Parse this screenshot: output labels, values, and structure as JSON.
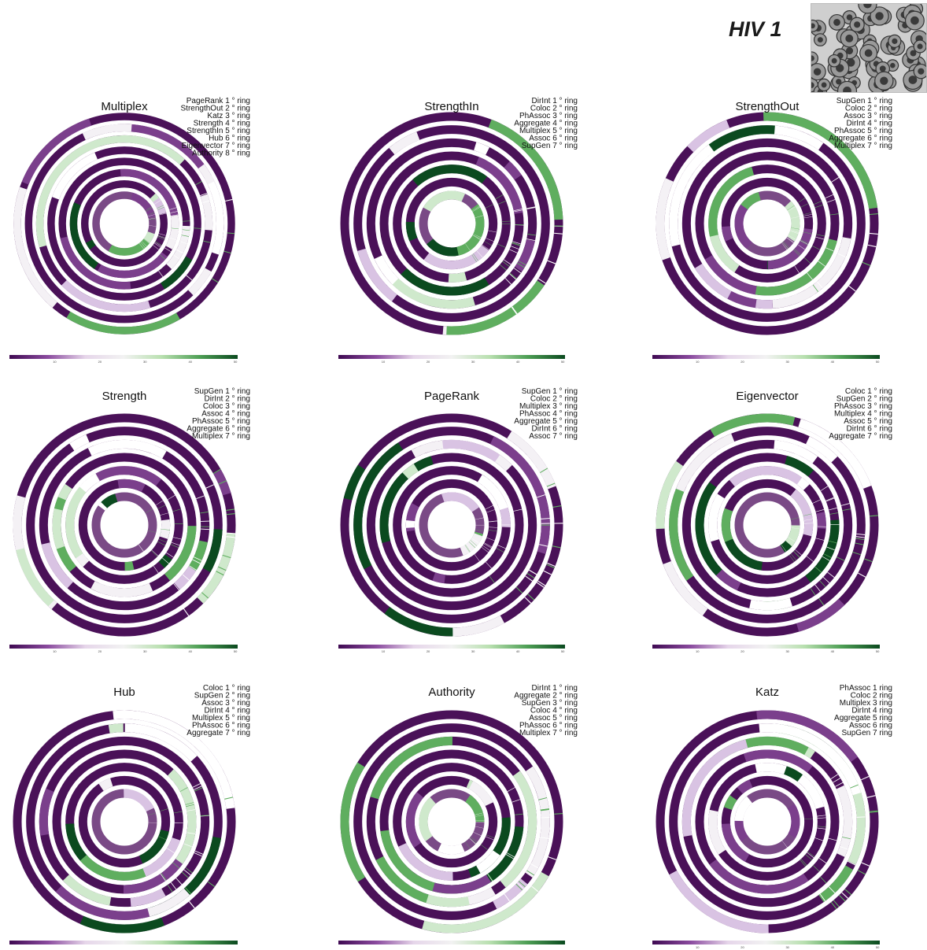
{
  "figure": {
    "title": "HIV 1"
  },
  "colors": {
    "ring_base": "#4a1158",
    "ring_mid": "#7b3f8c",
    "light_purple": "#d9c3e3",
    "light_green": "#cfe9cc",
    "mid_green": "#5fae5f",
    "dark_green": "#0b4a1f",
    "very_light": "#f4f1f5"
  },
  "colorbar": {
    "ticks": [
      "10",
      "20",
      "30",
      "40",
      "50"
    ],
    "stops": [
      "#3f0a52",
      "#8a4a9e",
      "#e6d6ea",
      "#f2f2f2",
      "#b9e0b0",
      "#4e9f55",
      "#0b4a1f"
    ]
  },
  "chart_data": [
    {
      "type": "circular heatmap",
      "title": "Multiplex",
      "rings": [
        "PageRank 1 ° ring",
        "StrengthOut 2 ° ring",
        "Katz 3 ° ring",
        "Strength 4 ° ring",
        "StrengthIn 5 ° ring",
        "Hub 6 ° ring",
        "Eigenvector 7 ° ring",
        "Authority 8 ° ring"
      ],
      "colorbar_ticks": [
        "10",
        "20",
        "30",
        "40",
        "50"
      ]
    },
    {
      "type": "circular heatmap",
      "title": "StrengthIn",
      "rings": [
        "DirInt 1 ° ring",
        "Coloc 2 ° ring",
        "PhAssoc 3 ° ring",
        "Aggregate 4 ° ring",
        "Multiplex 5 ° ring",
        "Assoc 6 ° ring",
        "SupGen 7 ° ring"
      ],
      "colorbar_ticks": [
        "10",
        "20",
        "30",
        "40",
        "50"
      ]
    },
    {
      "type": "circular heatmap",
      "title": "StrengthOut",
      "rings": [
        "SupGen 1 ° ring",
        "Coloc 2 ° ring",
        "Assoc 3 ° ring",
        "DirInt 4 ° ring",
        "PhAssoc 5 ° ring",
        "Aggregate 6 ° ring",
        "Multiplex 7 ° ring"
      ],
      "colorbar_ticks": [
        "10",
        "20",
        "30",
        "40",
        "50"
      ]
    },
    {
      "type": "circular heatmap",
      "title": "Strength",
      "rings": [
        "SupGen 1 ° ring",
        "DirInt 2 ° ring",
        "Coloc 3 ° ring",
        "Assoc 4 ° ring",
        "PhAssoc 5 ° ring",
        "Aggregate 6 ° ring",
        "Multiplex 7 ° ring"
      ],
      "colorbar_ticks": [
        "10",
        "20",
        "30",
        "40",
        "50"
      ]
    },
    {
      "type": "circular heatmap",
      "title": "PageRank",
      "rings": [
        "SupGen 1 ° ring",
        "Coloc 2 ° ring",
        "Multiplex 3 ° ring",
        "PhAssoc 4 ° ring",
        "Aggregate 5 ° ring",
        "DirInt 6 ° ring",
        "Assoc 7 ° ring"
      ],
      "colorbar_ticks": [
        "10",
        "20",
        "30",
        "40",
        "50"
      ]
    },
    {
      "type": "circular heatmap",
      "title": "Eigenvector",
      "rings": [
        "Coloc 1 ° ring",
        "SupGen 2 ° ring",
        "PhAssoc 3 ° ring",
        "Multiplex 4 ° ring",
        "Assoc 5 ° ring",
        "DirInt 6 ° ring",
        "Aggregate 7 ° ring"
      ],
      "colorbar_ticks": [
        "10",
        "20",
        "30",
        "40",
        "50"
      ]
    },
    {
      "type": "circular heatmap",
      "title": "Hub",
      "rings": [
        "Coloc 1 ° ring",
        "SupGen 2 ° ring",
        "Assoc 3 ° ring",
        "DirInt 4 ° ring",
        "Multiplex 5 ° ring",
        "PhAssoc 6 ° ring",
        "Aggregate 7 ° ring"
      ],
      "colorbar_ticks": []
    },
    {
      "type": "circular heatmap",
      "title": "Authority",
      "rings": [
        "DirInt 1 ° ring",
        "Aggregate 2 ° ring",
        "SupGen 3 ° ring",
        "Coloc 4 ° ring",
        "Assoc 5 ° ring",
        "PhAssoc 6 ° ring",
        "Multiplex 7 ° ring"
      ],
      "colorbar_ticks": []
    },
    {
      "type": "circular heatmap",
      "title": "Katz",
      "rings": [
        "PhAssoc 1 ring",
        "Coloc 2 ring",
        "Multiplex 3 ring",
        "DirInt 4 ring",
        "Aggregate 5 ring",
        "Assoc 6 ring",
        "SupGen 7 ring"
      ],
      "colorbar_ticks": [
        "10",
        "20",
        "30",
        "40",
        "50"
      ]
    }
  ]
}
